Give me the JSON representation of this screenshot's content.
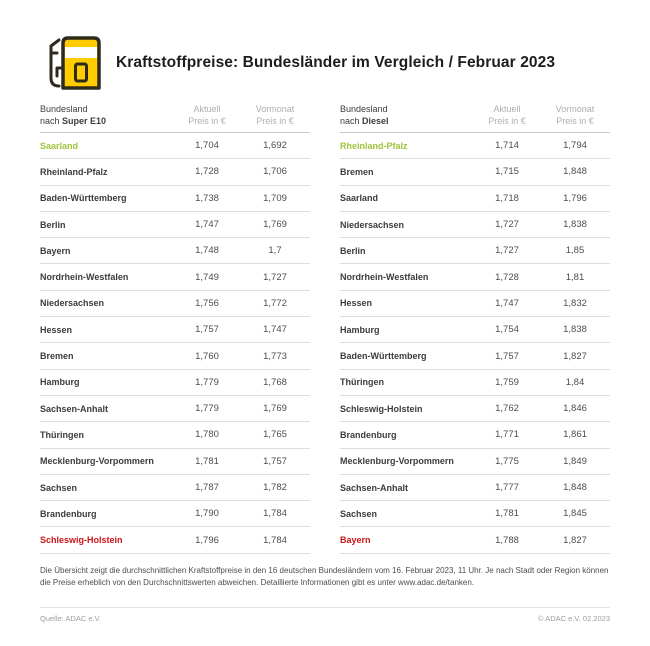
{
  "header": {
    "title": "Kraftstoffpreise: Bundesländer im Vergleich / Februar 2023"
  },
  "colors": {
    "accent_green": "#9ec43c",
    "accent_red": "#cc1517",
    "brand_yellow": "#ffcc00",
    "icon_outline": "#2e2a1c"
  },
  "tables": [
    {
      "name_header_line1": "Bundesland",
      "name_header_prefix": "nach ",
      "fuel": "Super E10",
      "col_current_line1": "Aktuell",
      "col_current_line2": "Preis in €",
      "col_previous_line1": "Vormonat",
      "col_previous_line2": "Preis in €",
      "rows": [
        {
          "state": "Saarland",
          "current": "1,704",
          "previous": "1,692",
          "highlight": "green"
        },
        {
          "state": "Rheinland-Pfalz",
          "current": "1,728",
          "previous": "1,706",
          "highlight": null
        },
        {
          "state": "Baden-Württemberg",
          "current": "1,738",
          "previous": "1,709",
          "highlight": null
        },
        {
          "state": "Berlin",
          "current": "1,747",
          "previous": "1,769",
          "highlight": null
        },
        {
          "state": "Bayern",
          "current": "1,748",
          "previous": "1,7",
          "highlight": null
        },
        {
          "state": "Nordrhein-Westfalen",
          "current": "1,749",
          "previous": "1,727",
          "highlight": null
        },
        {
          "state": "Niedersachsen",
          "current": "1,756",
          "previous": "1,772",
          "highlight": null
        },
        {
          "state": "Hessen",
          "current": "1,757",
          "previous": "1,747",
          "highlight": null
        },
        {
          "state": "Bremen",
          "current": "1,760",
          "previous": "1,773",
          "highlight": null
        },
        {
          "state": "Hamburg",
          "current": "1,779",
          "previous": "1,768",
          "highlight": null
        },
        {
          "state": "Sachsen-Anhalt",
          "current": "1,779",
          "previous": "1,769",
          "highlight": null
        },
        {
          "state": "Thüringen",
          "current": "1,780",
          "previous": "1,765",
          "highlight": null
        },
        {
          "state": "Mecklenburg-Vorpommern",
          "current": "1,781",
          "previous": "1,757",
          "highlight": null
        },
        {
          "state": "Sachsen",
          "current": "1,787",
          "previous": "1,782",
          "highlight": null
        },
        {
          "state": "Brandenburg",
          "current": "1,790",
          "previous": "1,784",
          "highlight": null
        },
        {
          "state": "Schleswig-Holstein",
          "current": "1,796",
          "previous": "1,784",
          "highlight": "red"
        }
      ]
    },
    {
      "name_header_line1": "Bundesland",
      "name_header_prefix": "nach ",
      "fuel": "Diesel",
      "col_current_line1": "Aktuell",
      "col_current_line2": "Preis in €",
      "col_previous_line1": "Vormonat",
      "col_previous_line2": "Preis in €",
      "rows": [
        {
          "state": "Rheinland-Pfalz",
          "current": "1,714",
          "previous": "1,794",
          "highlight": "green"
        },
        {
          "state": "Bremen",
          "current": "1,715",
          "previous": "1,848",
          "highlight": null
        },
        {
          "state": "Saarland",
          "current": "1,718",
          "previous": "1,796",
          "highlight": null
        },
        {
          "state": "Niedersachsen",
          "current": "1,727",
          "previous": "1,838",
          "highlight": null
        },
        {
          "state": "Berlin",
          "current": "1,727",
          "previous": "1,85",
          "highlight": null
        },
        {
          "state": "Nordrhein-Westfalen",
          "current": "1,728",
          "previous": "1,81",
          "highlight": null
        },
        {
          "state": "Hessen",
          "current": "1,747",
          "previous": "1,832",
          "highlight": null
        },
        {
          "state": "Hamburg",
          "current": "1,754",
          "previous": "1,838",
          "highlight": null
        },
        {
          "state": "Baden-Württemberg",
          "current": "1,757",
          "previous": "1,827",
          "highlight": null
        },
        {
          "state": "Thüringen",
          "current": "1,759",
          "previous": "1,84",
          "highlight": null
        },
        {
          "state": "Schleswig-Holstein",
          "current": "1,762",
          "previous": "1,846",
          "highlight": null
        },
        {
          "state": "Brandenburg",
          "current": "1,771",
          "previous": "1,861",
          "highlight": null
        },
        {
          "state": "Mecklenburg-Vorpommern",
          "current": "1,775",
          "previous": "1,849",
          "highlight": null
        },
        {
          "state": "Sachsen-Anhalt",
          "current": "1,777",
          "previous": "1,848",
          "highlight": null
        },
        {
          "state": "Sachsen",
          "current": "1,781",
          "previous": "1,845",
          "highlight": null
        },
        {
          "state": "Bayern",
          "current": "1,788",
          "previous": "1,827",
          "highlight": "red"
        }
      ]
    }
  ],
  "footer": {
    "disclaimer": "Die Übersicht zeigt die durchschnittlichen Kraftstoffpreise in den 16 deutschen Bundesländern vom 16. Februar 2023, 11 Uhr. Je nach Stadt oder Region können die Preise erheblich von den Durchschnittswerten abweichen. Detaillierte Informationen gibt es unter www.adac.de/tanken.",
    "source": "Quelle: ADAC e.V.",
    "copyright": "© ADAC e.V. 02.2023"
  },
  "chart_data": [
    {
      "type": "table",
      "title": "Bundesland nach Super E10",
      "columns": [
        "Bundesland",
        "Aktuell Preis in €",
        "Vormonat Preis in €"
      ],
      "rows": [
        [
          "Saarland",
          1.704,
          1.692
        ],
        [
          "Rheinland-Pfalz",
          1.728,
          1.706
        ],
        [
          "Baden-Württemberg",
          1.738,
          1.709
        ],
        [
          "Berlin",
          1.747,
          1.769
        ],
        [
          "Bayern",
          1.748,
          1.7
        ],
        [
          "Nordrhein-Westfalen",
          1.749,
          1.727
        ],
        [
          "Niedersachsen",
          1.756,
          1.772
        ],
        [
          "Hessen",
          1.757,
          1.747
        ],
        [
          "Bremen",
          1.76,
          1.773
        ],
        [
          "Hamburg",
          1.779,
          1.768
        ],
        [
          "Sachsen-Anhalt",
          1.779,
          1.769
        ],
        [
          "Thüringen",
          1.78,
          1.765
        ],
        [
          "Mecklenburg-Vorpommern",
          1.781,
          1.757
        ],
        [
          "Sachsen",
          1.787,
          1.782
        ],
        [
          "Brandenburg",
          1.79,
          1.784
        ],
        [
          "Schleswig-Holstein",
          1.796,
          1.784
        ]
      ],
      "annotations": {
        "cheapest": "Saarland",
        "most_expensive": "Schleswig-Holstein"
      }
    },
    {
      "type": "table",
      "title": "Bundesland nach Diesel",
      "columns": [
        "Bundesland",
        "Aktuell Preis in €",
        "Vormonat Preis in €"
      ],
      "rows": [
        [
          "Rheinland-Pfalz",
          1.714,
          1.794
        ],
        [
          "Bremen",
          1.715,
          1.848
        ],
        [
          "Saarland",
          1.718,
          1.796
        ],
        [
          "Niedersachsen",
          1.727,
          1.838
        ],
        [
          "Berlin",
          1.727,
          1.85
        ],
        [
          "Nordrhein-Westfalen",
          1.728,
          1.81
        ],
        [
          "Hessen",
          1.747,
          1.832
        ],
        [
          "Hamburg",
          1.754,
          1.838
        ],
        [
          "Baden-Württemberg",
          1.757,
          1.827
        ],
        [
          "Thüringen",
          1.759,
          1.84
        ],
        [
          "Schleswig-Holstein",
          1.762,
          1.846
        ],
        [
          "Brandenburg",
          1.771,
          1.861
        ],
        [
          "Mecklenburg-Vorpommern",
          1.775,
          1.849
        ],
        [
          "Sachsen-Anhalt",
          1.777,
          1.848
        ],
        [
          "Sachsen",
          1.781,
          1.845
        ],
        [
          "Bayern",
          1.788,
          1.827
        ]
      ],
      "annotations": {
        "cheapest": "Rheinland-Pfalz",
        "most_expensive": "Bayern"
      }
    }
  ]
}
